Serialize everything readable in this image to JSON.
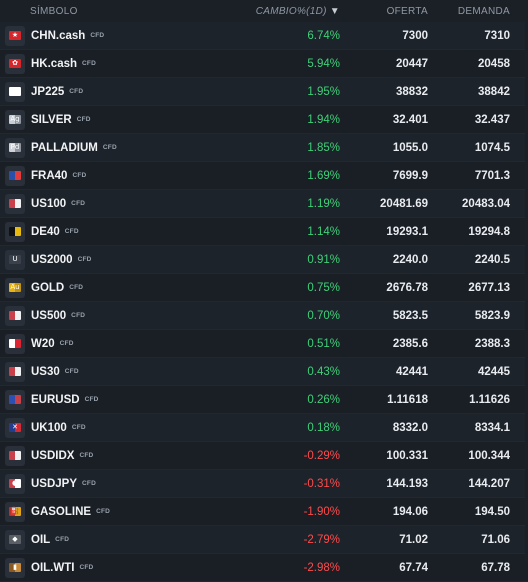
{
  "header": {
    "symbol": "SÍMBOLO",
    "change": "CAMBIO%(1D)",
    "bid": "OFERTA",
    "ask": "DEMANDA",
    "sort_arrow": "▼"
  },
  "rows": [
    {
      "symbol": "CHN.cash",
      "tag": "CFD",
      "change": "6.74%",
      "bid": "7300",
      "ask": "7310",
      "dir": "pos",
      "icon": "china-flag-icon",
      "c1": "#d6262b",
      "c2": "#d6262b",
      "glyph": "★"
    },
    {
      "symbol": "HK.cash",
      "tag": "CFD",
      "change": "5.94%",
      "bid": "20447",
      "ask": "20458",
      "dir": "pos",
      "icon": "hong-kong-flag-icon",
      "c1": "#d6262b",
      "c2": "#d6262b",
      "glyph": "✿"
    },
    {
      "symbol": "JP225",
      "tag": "CFD",
      "change": "1.95%",
      "bid": "38832",
      "ask": "38842",
      "dir": "pos",
      "icon": "japan-flag-icon",
      "c1": "#ffffff",
      "c2": "#ffffff",
      "glyph": "●"
    },
    {
      "symbol": "SILVER",
      "tag": "CFD",
      "change": "1.94%",
      "bid": "32.401",
      "ask": "32.437",
      "dir": "pos",
      "icon": "silver-icon",
      "c1": "#c9ced6",
      "c2": "#8d949e",
      "glyph": "Ag"
    },
    {
      "symbol": "PALLADIUM",
      "tag": "CFD",
      "change": "1.85%",
      "bid": "1055.0",
      "ask": "1074.5",
      "dir": "pos",
      "icon": "palladium-icon",
      "c1": "#cfd3d8",
      "c2": "#8f969f",
      "glyph": "Pd"
    },
    {
      "symbol": "FRA40",
      "tag": "CFD",
      "change": "1.69%",
      "bid": "7699.9",
      "ask": "7701.3",
      "dir": "pos",
      "icon": "france-flag-icon",
      "c1": "#2a4fa8",
      "c2": "#e23b3b",
      "glyph": ""
    },
    {
      "symbol": "US100",
      "tag": "CFD",
      "change": "1.19%",
      "bid": "20481.69",
      "ask": "20483.04",
      "dir": "pos",
      "icon": "usa-flag-icon",
      "c1": "#c9404a",
      "c2": "#f1f1f1",
      "glyph": ""
    },
    {
      "symbol": "DE40",
      "tag": "CFD",
      "change": "1.14%",
      "bid": "19293.1",
      "ask": "19294.8",
      "dir": "pos",
      "icon": "germany-flag-icon",
      "c1": "#111111",
      "c2": "#e8b90f",
      "glyph": ""
    },
    {
      "symbol": "US2000",
      "tag": "CFD",
      "change": "0.91%",
      "bid": "2240.0",
      "ask": "2240.5",
      "dir": "pos",
      "icon": "russell-icon",
      "c1": "#3b414a",
      "c2": "#3b414a",
      "glyph": "U"
    },
    {
      "symbol": "GOLD",
      "tag": "CFD",
      "change": "0.75%",
      "bid": "2676.78",
      "ask": "2677.13",
      "dir": "pos",
      "icon": "gold-icon",
      "c1": "#e7b416",
      "c2": "#c4930a",
      "glyph": "Au"
    },
    {
      "symbol": "US500",
      "tag": "CFD",
      "change": "0.70%",
      "bid": "5823.5",
      "ask": "5823.9",
      "dir": "pos",
      "icon": "usa-flag-icon",
      "c1": "#c9404a",
      "c2": "#f1f1f1",
      "glyph": ""
    },
    {
      "symbol": "W20",
      "tag": "CFD",
      "change": "0.51%",
      "bid": "2385.6",
      "ask": "2388.3",
      "dir": "pos",
      "icon": "poland-flag-icon",
      "c1": "#ffffff",
      "c2": "#dc2433",
      "glyph": ""
    },
    {
      "symbol": "US30",
      "tag": "CFD",
      "change": "0.43%",
      "bid": "42441",
      "ask": "42445",
      "dir": "pos",
      "icon": "usa-flag-icon",
      "c1": "#c9404a",
      "c2": "#f1f1f1",
      "glyph": ""
    },
    {
      "symbol": "EURUSD",
      "tag": "CFD",
      "change": "0.26%",
      "bid": "1.11618",
      "ask": "1.11626",
      "dir": "pos",
      "icon": "eu-us-flag-icon",
      "c1": "#2d4fb3",
      "c2": "#c9404a",
      "glyph": ""
    },
    {
      "symbol": "UK100",
      "tag": "CFD",
      "change": "0.18%",
      "bid": "8332.0",
      "ask": "8334.1",
      "dir": "pos",
      "icon": "uk-flag-icon",
      "c1": "#233c8c",
      "c2": "#d42a35",
      "glyph": "✕"
    },
    {
      "symbol": "USDIDX",
      "tag": "CFD",
      "change": "-0.29%",
      "bid": "100.331",
      "ask": "100.344",
      "dir": "neg",
      "icon": "usa-flag-icon",
      "c1": "#c9404a",
      "c2": "#f1f1f1",
      "glyph": ""
    },
    {
      "symbol": "USDJPY",
      "tag": "CFD",
      "change": "-0.31%",
      "bid": "144.193",
      "ask": "144.207",
      "dir": "neg",
      "icon": "us-jp-flag-icon",
      "c1": "#c9404a",
      "c2": "#ffffff",
      "glyph": "●"
    },
    {
      "symbol": "GASOLINE",
      "tag": "CFD",
      "change": "-1.90%",
      "bid": "194.06",
      "ask": "194.50",
      "dir": "neg",
      "icon": "gasoline-icon",
      "c1": "#b8322a",
      "c2": "#e2a31a",
      "glyph": "⛽"
    },
    {
      "symbol": "OIL",
      "tag": "CFD",
      "change": "-2.79%",
      "bid": "71.02",
      "ask": "71.06",
      "dir": "neg",
      "icon": "oil-icon",
      "c1": "#5a5f66",
      "c2": "#5a5f66",
      "glyph": "◆"
    },
    {
      "symbol": "OIL.WTI",
      "tag": "CFD",
      "change": "-2.98%",
      "bid": "67.74",
      "ask": "67.78",
      "dir": "neg",
      "icon": "oil-barrel-icon",
      "c1": "#8a5a22",
      "c2": "#c98a3a",
      "glyph": "▮"
    }
  ],
  "colors": {
    "positive": "#3fd178",
    "negative": "#ff4b4b",
    "background": "#1b2027"
  }
}
